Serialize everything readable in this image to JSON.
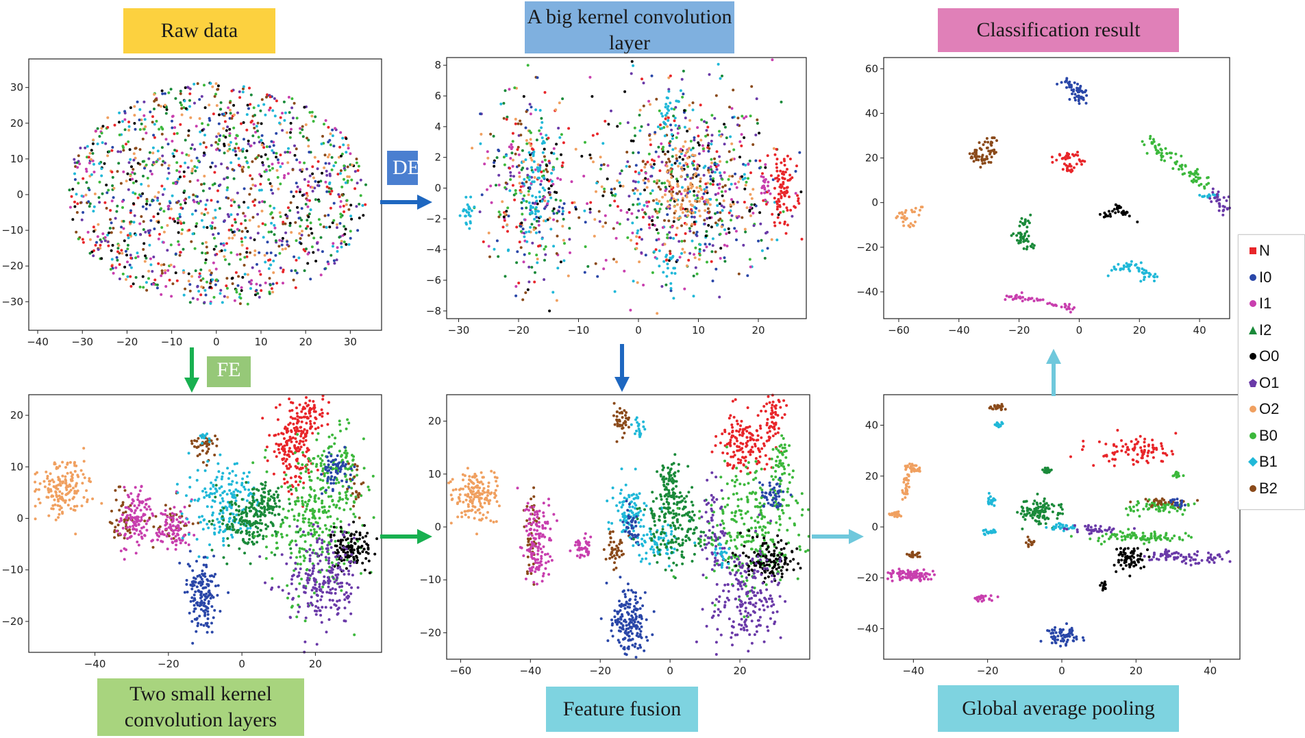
{
  "labels": {
    "raw": "Raw data",
    "big_kernel": "A big kernel convolution layer",
    "classification": "Classification result",
    "small_kernel": "Two small kernel convolution layers",
    "fusion": "Feature fusion",
    "gap": "Global average pooling",
    "de": "DE",
    "fe": "FE"
  },
  "colors": {
    "raw_label_bg": "#fcd13f",
    "big_kernel_bg": "#7fb0df",
    "classification_bg": "#e080b8",
    "small_kernel_bg": "#a8d47e",
    "fusion_bg": "#7ed3e0",
    "gap_bg": "#7ed3e0",
    "de_bg": "#4a7fd0",
    "fe_bg": "#96c878",
    "arrow_blue": "#1e67c0",
    "arrow_green": "#18b050",
    "arrow_cyan": "#6fc8dc"
  },
  "legend": [
    {
      "label": "N",
      "color": "#e8262a",
      "marker": "square"
    },
    {
      "label": "I0",
      "color": "#2a47a8",
      "marker": "circle"
    },
    {
      "label": "I1",
      "color": "#c83fae",
      "marker": "circle"
    },
    {
      "label": "I2",
      "color": "#1a8a3a",
      "marker": "triangle"
    },
    {
      "label": "O0",
      "color": "#000000",
      "marker": "circle"
    },
    {
      "label": "O1",
      "color": "#6a3aa8",
      "marker": "pentagon"
    },
    {
      "label": "O2",
      "color": "#f0a060",
      "marker": "circle"
    },
    {
      "label": "B0",
      "color": "#3cb83c",
      "marker": "circle"
    },
    {
      "label": "B1",
      "color": "#20b8d8",
      "marker": "diamond"
    },
    {
      "label": "B2",
      "color": "#8a4a1a",
      "marker": "circle"
    }
  ],
  "chart_data": [
    {
      "id": "raw",
      "type": "scatter",
      "xlim": [
        -42,
        37
      ],
      "ylim": [
        -38,
        38
      ],
      "xticks": [
        -40,
        -30,
        -20,
        -10,
        0,
        10,
        20,
        30
      ],
      "yticks": [
        -30,
        -20,
        -10,
        0,
        10,
        20,
        30
      ],
      "clusters": [
        {
          "class": "mixed",
          "cx": 0,
          "cy": 0,
          "sx": 16,
          "sy": 15,
          "n": 1400,
          "disc": true
        }
      ]
    },
    {
      "id": "big_kernel",
      "type": "scatter",
      "xlim": [
        -32,
        28
      ],
      "ylim": [
        -8.5,
        8.5
      ],
      "xticks": [
        -30,
        -20,
        -10,
        0,
        10,
        20
      ],
      "yticks": [
        -8,
        -6,
        -4,
        -2,
        0,
        2,
        4,
        6,
        8
      ],
      "clusters": [
        {
          "class": "mixed",
          "cx": -18,
          "cy": 0,
          "sx": 4,
          "sy": 3,
          "n": 350
        },
        {
          "class": "mixed",
          "cx": 8,
          "cy": 0,
          "sx": 8,
          "sy": 3,
          "n": 800
        },
        {
          "class": "B1",
          "cx": -17,
          "cy": 0,
          "sx": 1.5,
          "sy": 2,
          "n": 60
        },
        {
          "class": "B1",
          "cx": -28.5,
          "cy": -1.6,
          "sx": 0.5,
          "sy": 0.5,
          "n": 25
        },
        {
          "class": "N",
          "cx": 24,
          "cy": 0,
          "sx": 1.2,
          "sy": 1.2,
          "n": 90
        },
        {
          "class": "I1",
          "cx": 21,
          "cy": 0,
          "sx": 0.6,
          "sy": 0.6,
          "n": 20
        },
        {
          "class": "O2",
          "cx": 8,
          "cy": 0,
          "sx": 3,
          "sy": 1.5,
          "n": 80
        },
        {
          "class": "B1",
          "cx": 5,
          "cy": 5,
          "sx": 1,
          "sy": 0.7,
          "n": 25
        },
        {
          "class": "B1",
          "cx": 5,
          "cy": -5,
          "sx": 1,
          "sy": 0.7,
          "n": 20
        }
      ]
    },
    {
      "id": "classification",
      "type": "scatter",
      "xlim": [
        -65,
        50
      ],
      "ylim": [
        -52,
        65
      ],
      "xticks": [
        -60,
        -40,
        -20,
        0,
        20,
        40
      ],
      "yticks": [
        -40,
        -20,
        0,
        20,
        40,
        60
      ],
      "clusters": [
        {
          "class": "I0",
          "path": [
            [
              -5,
              55
            ],
            [
              0,
              50
            ],
            [
              0,
              45
            ]
          ],
          "n": 60,
          "w": 1.2
        },
        {
          "class": "B2",
          "path": [
            [
              -28,
              30
            ],
            [
              -35,
              20
            ],
            [
              -30,
              18
            ],
            [
              -28,
              25
            ]
          ],
          "n": 60,
          "w": 1.2
        },
        {
          "class": "N",
          "path": [
            [
              -8,
              18
            ],
            [
              -3,
              22
            ],
            [
              0,
              18
            ],
            [
              -5,
              14
            ]
          ],
          "n": 45,
          "w": 1.2
        },
        {
          "class": "B0",
          "path": [
            [
              22,
              28
            ],
            [
              35,
              15
            ],
            [
              42,
              8
            ]
          ],
          "n": 80,
          "w": 1.5
        },
        {
          "class": "B1",
          "path": [
            [
              40,
              3
            ],
            [
              46,
              3
            ]
          ],
          "n": 15,
          "w": 0.6
        },
        {
          "class": "O1",
          "path": [
            [
              44,
              5
            ],
            [
              48,
              0
            ],
            [
              48,
              -7
            ]
          ],
          "n": 30,
          "w": 1
        },
        {
          "class": "O0",
          "path": [
            [
              8,
              -6
            ],
            [
              13,
              -2
            ],
            [
              18,
              -8
            ]
          ],
          "n": 35,
          "w": 0.8
        },
        {
          "class": "O2",
          "path": [
            [
              -52,
              -2
            ],
            [
              -60,
              -5
            ],
            [
              -58,
              -10
            ],
            [
              -55,
              -10
            ]
          ],
          "n": 30,
          "w": 0.8
        },
        {
          "class": "I2",
          "path": [
            [
              -17,
              -5
            ],
            [
              -20,
              -15
            ],
            [
              -16,
              -20
            ]
          ],
          "n": 50,
          "w": 1.3
        },
        {
          "class": "B1",
          "path": [
            [
              12,
              -30
            ],
            [
              18,
              -28
            ],
            [
              25,
              -34
            ]
          ],
          "n": 50,
          "w": 1.2
        },
        {
          "class": "I1",
          "path": [
            [
              -24,
              -42
            ],
            [
              -15,
              -43
            ],
            [
              -2,
              -48
            ]
          ],
          "n": 50,
          "w": 0.8
        }
      ]
    },
    {
      "id": "small_kernel",
      "type": "scatter",
      "xlim": [
        -58,
        38
      ],
      "ylim": [
        -26,
        24
      ],
      "xticks": [
        -40,
        -20,
        0,
        20
      ],
      "yticks": [
        -20,
        -10,
        0,
        10,
        20
      ],
      "clusters": [
        {
          "class": "O2",
          "cx": -49,
          "cy": 6,
          "sx": 4,
          "sy": 2.5,
          "n": 160
        },
        {
          "class": "B2",
          "cx": -33,
          "cy": 0,
          "sx": 1.5,
          "sy": 3,
          "n": 40
        },
        {
          "class": "I1",
          "cx": -29,
          "cy": 0,
          "sx": 2.2,
          "sy": 3,
          "n": 120
        },
        {
          "class": "B2",
          "cx": -19,
          "cy": -1,
          "sx": 3,
          "sy": 2,
          "n": 40
        },
        {
          "class": "I1",
          "cx": -19,
          "cy": -2,
          "sx": 2.2,
          "sy": 2.2,
          "n": 90
        },
        {
          "class": "B2",
          "cx": -10,
          "cy": 14,
          "sx": 1.8,
          "sy": 1.2,
          "n": 40
        },
        {
          "class": "B1",
          "cx": -10,
          "cy": 16,
          "sx": 0.8,
          "sy": 0.8,
          "n": 10
        },
        {
          "class": "B1",
          "cx": -5,
          "cy": 3,
          "sx": 5,
          "sy": 4,
          "n": 180
        },
        {
          "class": "I2",
          "cx": 3,
          "cy": 0,
          "sx": 4,
          "sy": 3,
          "n": 200
        },
        {
          "class": "I2",
          "cx": 7,
          "cy": 4,
          "sx": 1.5,
          "sy": 1.5,
          "n": 40
        },
        {
          "class": "I0",
          "cx": -11,
          "cy": -15,
          "sx": 2.2,
          "sy": 3.5,
          "n": 150
        },
        {
          "class": "N",
          "cx": 14,
          "cy": 14,
          "sx": 3,
          "sy": 4,
          "n": 180
        },
        {
          "class": "N",
          "cx": 19,
          "cy": 20,
          "sx": 2,
          "sy": 2,
          "n": 60
        },
        {
          "class": "B0",
          "cx": 20,
          "cy": 0,
          "sx": 7,
          "sy": 7,
          "n": 300
        },
        {
          "class": "B0",
          "cx": 26,
          "cy": 10,
          "sx": 3,
          "sy": 3,
          "n": 80
        },
        {
          "class": "I0",
          "cx": 26,
          "cy": 9,
          "sx": 2,
          "sy": 2,
          "n": 60
        },
        {
          "class": "O0",
          "cx": 30,
          "cy": -6,
          "sx": 3,
          "sy": 2,
          "n": 120
        },
        {
          "class": "O1",
          "cx": 22,
          "cy": -12,
          "sx": 5,
          "sy": 5,
          "n": 220
        },
        {
          "class": "B2",
          "cx": 31,
          "cy": 5,
          "sx": 1,
          "sy": 3,
          "n": 20
        }
      ]
    },
    {
      "id": "fusion",
      "type": "scatter",
      "xlim": [
        -64,
        40
      ],
      "ylim": [
        -25,
        25
      ],
      "xticks": [
        -60,
        -40,
        -20,
        0,
        20
      ],
      "yticks": [
        -20,
        -10,
        0,
        10,
        20
      ],
      "clusters": [
        {
          "class": "O2",
          "cx": -56,
          "cy": 6,
          "sx": 3.5,
          "sy": 2.5,
          "n": 160
        },
        {
          "class": "B2",
          "cx": -40,
          "cy": -2,
          "sx": 1,
          "sy": 4,
          "n": 40
        },
        {
          "class": "I1",
          "cx": -38,
          "cy": -2,
          "sx": 2.2,
          "sy": 4,
          "n": 140
        },
        {
          "class": "I1",
          "cx": -25,
          "cy": -4,
          "sx": 1.3,
          "sy": 1.3,
          "n": 40
        },
        {
          "class": "B2",
          "cx": -16,
          "cy": -4,
          "sx": 1.5,
          "sy": 2,
          "n": 40
        },
        {
          "class": "B2",
          "cx": -14,
          "cy": 20,
          "sx": 1.2,
          "sy": 1.3,
          "n": 40
        },
        {
          "class": "B1",
          "cx": -9,
          "cy": 19,
          "sx": 0.8,
          "sy": 1,
          "n": 20
        },
        {
          "class": "B1",
          "cx": -12,
          "cy": 3,
          "sx": 2.5,
          "sy": 2.5,
          "n": 90
        },
        {
          "class": "I0",
          "cx": -11,
          "cy": 0,
          "sx": 1.2,
          "sy": 2,
          "n": 40
        },
        {
          "class": "B1",
          "cx": -3,
          "cy": -3,
          "sx": 3,
          "sy": 2,
          "n": 70
        },
        {
          "class": "I2",
          "cx": 0,
          "cy": 9,
          "sx": 1.3,
          "sy": 1.5,
          "n": 50
        },
        {
          "class": "I2",
          "cx": 1,
          "cy": 1,
          "sx": 4,
          "sy": 4,
          "n": 200
        },
        {
          "class": "I0",
          "cx": -12,
          "cy": -18,
          "sx": 2.5,
          "sy": 3,
          "n": 170
        },
        {
          "class": "N",
          "cx": 21,
          "cy": 16,
          "sx": 3.5,
          "sy": 2.5,
          "n": 140
        },
        {
          "class": "N",
          "cx": 30,
          "cy": 21,
          "sx": 1.5,
          "sy": 2.5,
          "n": 60
        },
        {
          "class": "B0",
          "cx": 24,
          "cy": 0,
          "sx": 7,
          "sy": 6,
          "n": 280
        },
        {
          "class": "B0",
          "cx": 32,
          "cy": 12,
          "sx": 1.5,
          "sy": 3,
          "n": 50
        },
        {
          "class": "I0",
          "cx": 30,
          "cy": 6,
          "sx": 2,
          "sy": 2,
          "n": 50
        },
        {
          "class": "O0",
          "cx": 28,
          "cy": -6,
          "sx": 4,
          "sy": 2,
          "n": 130
        },
        {
          "class": "O1",
          "cx": 22,
          "cy": -13,
          "sx": 5,
          "sy": 5,
          "n": 200
        },
        {
          "class": "O1",
          "cx": 12,
          "cy": 0,
          "sx": 2,
          "sy": 5,
          "n": 60
        },
        {
          "class": "B1",
          "cx": 15,
          "cy": -5,
          "sx": 1,
          "sy": 1,
          "n": 20
        }
      ]
    },
    {
      "id": "gap",
      "type": "scatter",
      "xlim": [
        -48,
        48
      ],
      "ylim": [
        -52,
        52
      ],
      "xticks": [
        -40,
        -20,
        0,
        20,
        40
      ],
      "yticks": [
        -40,
        -20,
        0,
        20,
        40
      ],
      "clusters": [
        {
          "class": "B2",
          "cx": -17,
          "cy": 47,
          "sx": 1,
          "sy": 0.7,
          "n": 25
        },
        {
          "class": "B1",
          "cx": -17,
          "cy": 40,
          "sx": 0.8,
          "sy": 0.5,
          "n": 15
        },
        {
          "class": "N",
          "cx": 20,
          "cy": 30,
          "sx": 6,
          "sy": 3,
          "n": 90
        },
        {
          "class": "O2",
          "cx": -40,
          "cy": 23,
          "sx": 1.2,
          "sy": 0.7,
          "n": 30
        },
        {
          "class": "O2",
          "cx": -42,
          "cy": 15,
          "sx": 0.6,
          "sy": 3,
          "n": 30
        },
        {
          "class": "O2",
          "cx": -45,
          "cy": 5,
          "sx": 0.8,
          "sy": 0.6,
          "n": 20
        },
        {
          "class": "I2",
          "cx": -4,
          "cy": 22,
          "sx": 0.6,
          "sy": 0.6,
          "n": 20
        },
        {
          "class": "I2",
          "cx": -6,
          "cy": 6,
          "sx": 2.5,
          "sy": 2.5,
          "n": 110
        },
        {
          "class": "B1",
          "cx": -19,
          "cy": 10,
          "sx": 0.6,
          "sy": 1,
          "n": 20
        },
        {
          "class": "B1",
          "cx": -20,
          "cy": -2,
          "sx": 1,
          "sy": 0.6,
          "n": 20
        },
        {
          "class": "B1",
          "cx": 0,
          "cy": 0,
          "sx": 2,
          "sy": 0.7,
          "n": 30
        },
        {
          "class": "O1",
          "cx": 8,
          "cy": -1,
          "sx": 3,
          "sy": 0.8,
          "n": 40
        },
        {
          "class": "B0",
          "cx": 20,
          "cy": -4,
          "sx": 7,
          "sy": 1,
          "n": 90
        },
        {
          "class": "B0",
          "cx": 26,
          "cy": 8,
          "sx": 4,
          "sy": 1.2,
          "n": 70
        },
        {
          "class": "B2",
          "cx": 27,
          "cy": 10,
          "sx": 3,
          "sy": 1,
          "n": 30
        },
        {
          "class": "I0",
          "cx": 31,
          "cy": 10,
          "sx": 1,
          "sy": 1,
          "n": 20
        },
        {
          "class": "B0",
          "cx": 31,
          "cy": 21,
          "sx": 0.6,
          "sy": 0.8,
          "n": 15
        },
        {
          "class": "O0",
          "cx": 18,
          "cy": -12,
          "sx": 2,
          "sy": 2.5,
          "n": 70
        },
        {
          "class": "O0",
          "cx": 11,
          "cy": -23,
          "sx": 0.4,
          "sy": 0.8,
          "n": 15
        },
        {
          "class": "O1",
          "cx": 27,
          "cy": -11,
          "sx": 2,
          "sy": 1,
          "n": 30
        },
        {
          "class": "O1",
          "cx": 38,
          "cy": -12,
          "sx": 5,
          "sy": 1.2,
          "n": 50
        },
        {
          "class": "B2",
          "cx": -40,
          "cy": -11,
          "sx": 1.2,
          "sy": 0.6,
          "n": 20
        },
        {
          "class": "I1",
          "cx": -40,
          "cy": -19,
          "sx": 3,
          "sy": 1.3,
          "n": 90
        },
        {
          "class": "I1",
          "cx": -21,
          "cy": -28,
          "sx": 1.2,
          "sy": 0.6,
          "n": 25
        },
        {
          "class": "B2",
          "cx": -8,
          "cy": -6,
          "sx": 0.6,
          "sy": 0.8,
          "n": 15
        },
        {
          "class": "I0",
          "cx": 0,
          "cy": -43,
          "sx": 2.5,
          "sy": 1.8,
          "n": 70
        }
      ]
    }
  ]
}
